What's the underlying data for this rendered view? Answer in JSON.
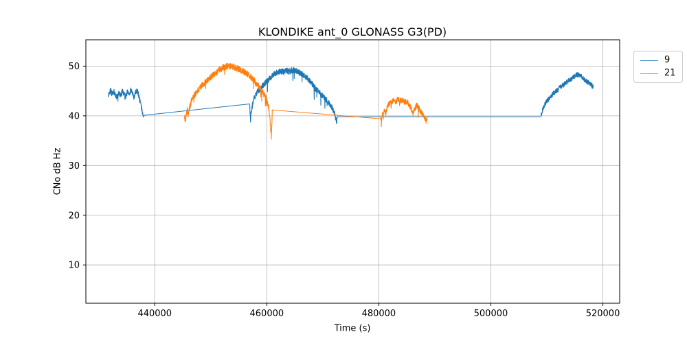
{
  "figure": {
    "background": "#ffffff"
  },
  "chart_data": {
    "type": "line",
    "title": "KLONDIKE ant_0 GLONASS G3(PD)",
    "xlabel": "Time (s)",
    "ylabel": "CNo dB Hz",
    "xlim": [
      427700,
      523000
    ],
    "ylim": [
      2.3,
      55.3
    ],
    "xticks": [
      {
        "value": 440000,
        "label": "440000"
      },
      {
        "value": 460000,
        "label": "460000"
      },
      {
        "value": 480000,
        "label": "480000"
      },
      {
        "value": 500000,
        "label": "500000"
      },
      {
        "value": 520000,
        "label": "520000"
      }
    ],
    "yticks": [
      {
        "value": 10,
        "label": "10"
      },
      {
        "value": 20,
        "label": "20"
      },
      {
        "value": 30,
        "label": "30"
      },
      {
        "value": 40,
        "label": "40"
      },
      {
        "value": 50,
        "label": "50"
      }
    ],
    "grid": true,
    "grid_color": "#b0b0b0",
    "frame_color": "#000000",
    "legend": {
      "position": "outside upper right",
      "entries": [
        "9",
        "21"
      ]
    },
    "series": [
      {
        "name": "9",
        "color": "#1f77b4",
        "segments": [
          {
            "kind": "noisy",
            "noise": 0.55,
            "spike_prob": 0.02,
            "spike_max": 1.5,
            "points": [
              [
                431700,
                44.0
              ],
              [
                431900,
                44.6
              ],
              [
                432150,
                45.2
              ],
              [
                432400,
                44.4
              ],
              [
                432700,
                44.9
              ],
              [
                433000,
                44.1
              ],
              [
                433300,
                43.8
              ],
              [
                433600,
                44.7
              ],
              [
                433900,
                44.2
              ],
              [
                434200,
                45.0
              ],
              [
                434500,
                44.4
              ],
              [
                434800,
                43.9
              ],
              [
                435100,
                44.8
              ],
              [
                435400,
                44.2
              ],
              [
                435700,
                45.1
              ],
              [
                436000,
                44.5
              ],
              [
                436300,
                43.7
              ],
              [
                436600,
                44.9
              ],
              [
                436900,
                45.2
              ],
              [
                437100,
                44.3
              ],
              [
                437300,
                43.2
              ],
              [
                437500,
                42.3
              ],
              [
                437700,
                41.2
              ],
              [
                437900,
                40.2
              ],
              [
                438000,
                39.9
              ]
            ]
          },
          {
            "kind": "line",
            "points": [
              [
                438000,
                40.1
              ],
              [
                456950,
                42.4
              ]
            ]
          },
          {
            "kind": "noisy",
            "noise": 0.6,
            "spike_prob": 0.03,
            "spike_max": 2.2,
            "points": [
              [
                456950,
                42.4
              ],
              [
                457000,
                40.6
              ],
              [
                457100,
                39.2
              ],
              [
                457250,
                40.8
              ],
              [
                457450,
                42.3
              ],
              [
                457700,
                43.4
              ],
              [
                458000,
                44.2
              ],
              [
                458400,
                44.9
              ],
              [
                458900,
                45.5
              ],
              [
                459400,
                46.2
              ],
              [
                460000,
                46.9
              ],
              [
                460600,
                47.6
              ],
              [
                461200,
                48.3
              ],
              [
                461900,
                48.8
              ],
              [
                462600,
                48.9
              ],
              [
                463300,
                49.1
              ],
              [
                464000,
                48.9
              ],
              [
                464700,
                49.2
              ],
              [
                465300,
                49.0
              ],
              [
                465900,
                48.7
              ],
              [
                466500,
                48.2
              ],
              [
                467100,
                47.7
              ],
              [
                467700,
                46.9
              ],
              [
                468300,
                46.1
              ],
              [
                468900,
                45.2
              ],
              [
                469500,
                44.5
              ],
              [
                470100,
                43.8
              ],
              [
                470700,
                43.1
              ],
              [
                471200,
                42.4
              ],
              [
                471700,
                41.5
              ],
              [
                472100,
                40.5
              ],
              [
                472350,
                39.2
              ],
              [
                472500,
                38.8
              ],
              [
                472600,
                39.8
              ]
            ]
          },
          {
            "kind": "line",
            "points": [
              [
                472600,
                39.8
              ],
              [
                508950,
                39.8
              ]
            ]
          },
          {
            "kind": "noisy",
            "noise": 0.5,
            "spike_prob": 0.02,
            "spike_max": 1.8,
            "points": [
              [
                508950,
                39.9
              ],
              [
                509100,
                40.6
              ],
              [
                509300,
                41.4
              ],
              [
                509500,
                42.0
              ],
              [
                509800,
                42.6
              ],
              [
                510200,
                43.2
              ],
              [
                510700,
                43.9
              ],
              [
                511200,
                44.5
              ],
              [
                511800,
                45.1
              ],
              [
                512400,
                45.7
              ],
              [
                513000,
                46.3
              ],
              [
                513700,
                46.9
              ],
              [
                514300,
                47.4
              ],
              [
                514900,
                47.9
              ],
              [
                515400,
                48.3
              ],
              [
                515800,
                48.2
              ],
              [
                516200,
                47.8
              ],
              [
                516600,
                47.4
              ],
              [
                517000,
                47.0
              ],
              [
                517500,
                46.6
              ],
              [
                517900,
                46.2
              ],
              [
                518300,
                45.9
              ]
            ]
          }
        ]
      },
      {
        "name": "21",
        "color": "#ff7f0e",
        "segments": [
          {
            "kind": "noisy",
            "noise": 0.65,
            "spike_prob": 0.025,
            "spike_max": 2.0,
            "points": [
              [
                445300,
                40.3
              ],
              [
                445450,
                38.8
              ],
              [
                445600,
                40.2
              ],
              [
                445800,
                41.2
              ],
              [
                446000,
                40.1
              ],
              [
                446250,
                41.8
              ],
              [
                446500,
                42.8
              ],
              [
                446800,
                43.6
              ],
              [
                447200,
                44.3
              ],
              [
                447700,
                45.1
              ],
              [
                448200,
                45.8
              ],
              [
                448800,
                46.5
              ],
              [
                449400,
                47.2
              ],
              [
                450100,
                47.9
              ],
              [
                450800,
                48.6
              ],
              [
                451500,
                49.2
              ],
              [
                452200,
                49.7
              ],
              [
                452900,
                50.0
              ],
              [
                453600,
                50.0
              ],
              [
                454300,
                49.7
              ],
              [
                455000,
                49.4
              ],
              [
                455700,
                49.0
              ],
              [
                456400,
                48.5
              ],
              [
                457100,
                47.9
              ],
              [
                457800,
                47.0
              ],
              [
                458400,
                46.1
              ],
              [
                459000,
                45.2
              ],
              [
                459500,
                44.3
              ],
              [
                460000,
                43.2
              ],
              [
                460300,
                41.9
              ],
              [
                460550,
                39.8
              ],
              [
                460700,
                37.2
              ],
              [
                460800,
                35.8
              ],
              [
                460900,
                38.5
              ],
              [
                460980,
                41.2
              ]
            ]
          },
          {
            "kind": "line",
            "points": [
              [
                460980,
                41.2
              ],
              [
                480350,
                39.4
              ]
            ]
          },
          {
            "kind": "noisy",
            "noise": 0.55,
            "spike_prob": 0.025,
            "spike_max": 1.8,
            "points": [
              [
                480350,
                39.6
              ],
              [
                480500,
                38.9
              ],
              [
                480650,
                40.6
              ],
              [
                480800,
                39.8
              ],
              [
                481000,
                41.2
              ],
              [
                481250,
                40.6
              ],
              [
                481500,
                41.9
              ],
              [
                481800,
                42.4
              ],
              [
                482200,
                42.8
              ],
              [
                482600,
                43.1
              ],
              [
                483000,
                42.8
              ],
              [
                483400,
                43.3
              ],
              [
                483800,
                43.0
              ],
              [
                484200,
                43.2
              ],
              [
                484600,
                42.7
              ],
              [
                485000,
                42.9
              ],
              [
                485400,
                42.2
              ],
              [
                485800,
                41.4
              ],
              [
                486100,
                40.5
              ],
              [
                486400,
                41.3
              ],
              [
                486700,
                42.1
              ],
              [
                487000,
                41.9
              ],
              [
                487300,
                41.2
              ],
              [
                487600,
                40.7
              ],
              [
                487900,
                40.2
              ],
              [
                488200,
                39.6
              ],
              [
                488450,
                38.9
              ],
              [
                488650,
                39.9
              ]
            ]
          }
        ]
      }
    ]
  }
}
